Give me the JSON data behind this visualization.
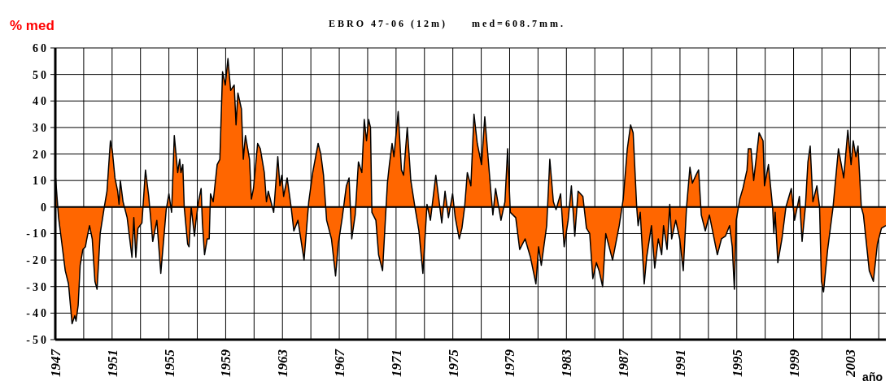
{
  "chart_data": {
    "type": "area",
    "title": "EBRO 47-06 (12m)     med=608.7mm.",
    "ylabel": "% med",
    "xlabel": "año",
    "x": [
      1947.02,
      1947.23,
      1947.42,
      1947.7,
      1947.93,
      1948.18,
      1948.37,
      1948.46,
      1948.61,
      1948.75,
      1948.94,
      1949.12,
      1949.22,
      1949.41,
      1949.6,
      1949.79,
      1949.94,
      1950.16,
      1950.45,
      1950.64,
      1950.88,
      1951.02,
      1951.2,
      1951.39,
      1951.49,
      1951.58,
      1951.77,
      1952.06,
      1952.4,
      1952.53,
      1952.67,
      1952.82,
      1953.1,
      1953.35,
      1953.58,
      1953.86,
      1954.15,
      1954.43,
      1954.81,
      1955.0,
      1955.19,
      1955.38,
      1955.62,
      1955.76,
      1955.85,
      1955.98,
      1956.08,
      1956.32,
      1956.42,
      1956.57,
      1956.8,
      1956.89,
      1957.08,
      1957.27,
      1957.36,
      1957.51,
      1957.7,
      1957.84,
      1957.93,
      1958.12,
      1958.4,
      1958.59,
      1958.78,
      1958.97,
      1959.16,
      1959.35,
      1959.6,
      1959.73,
      1959.86,
      1960.11,
      1960.24,
      1960.39,
      1960.68,
      1960.81,
      1960.96,
      1961.25,
      1961.44,
      1961.72,
      1961.87,
      1962.0,
      1962.38,
      1962.67,
      1962.82,
      1962.95,
      1963.08,
      1963.33,
      1963.61,
      1963.8,
      1964.09,
      1964.52,
      1964.85,
      1965.13,
      1965.51,
      1965.7,
      1965.89,
      1966.11,
      1966.45,
      1966.74,
      1966.93,
      1967.21,
      1967.5,
      1967.69,
      1967.88,
      1968.12,
      1968.35,
      1968.59,
      1968.76,
      1968.92,
      1969.07,
      1969.2,
      1969.3,
      1969.58,
      1969.77,
      1970.05,
      1970.39,
      1970.53,
      1970.72,
      1970.85,
      1971.15,
      1971.38,
      1971.53,
      1971.79,
      1972.04,
      1972.33,
      1972.61,
      1972.89,
      1973.18,
      1973.42,
      1973.8,
      1973.99,
      1974.22,
      1974.45,
      1974.69,
      1974.98,
      1975.17,
      1975.45,
      1975.64,
      1975.83,
      1976.02,
      1976.27,
      1976.49,
      1976.72,
      1977.02,
      1977.25,
      1977.63,
      1977.82,
      1978.01,
      1978.39,
      1978.67,
      1978.86,
      1979.05,
      1979.43,
      1979.71,
      1980.09,
      1980.47,
      1980.85,
      1981.04,
      1981.23,
      1981.61,
      1981.83,
      1982.08,
      1982.27,
      1982.59,
      1982.84,
      1983.12,
      1983.35,
      1983.59,
      1983.82,
      1984.16,
      1984.41,
      1984.64,
      1984.86,
      1985.11,
      1985.3,
      1985.55,
      1985.77,
      1986.25,
      1986.72,
      1987.0,
      1987.29,
      1987.52,
      1987.7,
      1987.95,
      1988.05,
      1988.2,
      1988.48,
      1988.65,
      1988.99,
      1989.22,
      1989.47,
      1989.71,
      1989.84,
      1990.09,
      1990.28,
      1990.41,
      1990.7,
      1990.98,
      1991.23,
      1991.46,
      1991.7,
      1991.87,
      1992.12,
      1992.31,
      1992.5,
      1992.78,
      1993.07,
      1993.63,
      1993.92,
      1994.2,
      1994.49,
      1994.68,
      1994.83,
      1994.96,
      1995.21,
      1995.43,
      1995.72,
      1995.81,
      1996.0,
      1996.19,
      1996.57,
      1996.85,
      1996.95,
      1997.23,
      1997.52,
      1997.61,
      1997.7,
      1997.89,
      1998.18,
      1998.46,
      1998.84,
      1999.07,
      1999.41,
      1999.6,
      1999.83,
      2000.01,
      2000.17,
      2000.36,
      2000.64,
      2000.83,
      2000.96,
      2001.11,
      2001.4,
      2001.78,
      2002.16,
      2002.53,
      2002.82,
      2003.05,
      2003.2,
      2003.39,
      2003.54,
      2003.77,
      2003.92,
      2004.33,
      2004.62,
      2004.9,
      2005.19,
      2005.5
    ],
    "series": [
      {
        "color": "#ff6600",
        "values": [
          11,
          -4,
          -12,
          -24,
          -29,
          -44,
          -41,
          -43,
          -37,
          -22,
          -16,
          -15,
          -12,
          -7,
          -12,
          -28,
          -31,
          -10,
          0,
          6,
          25,
          21,
          11,
          6,
          1,
          10,
          2,
          -4,
          -19,
          -4,
          -19,
          -8,
          -6,
          14,
          4,
          -13,
          -5,
          -25,
          -1,
          5,
          -2,
          27,
          13,
          18,
          13,
          16,
          0,
          -14,
          -15,
          0,
          -11,
          -6,
          2,
          7,
          -6,
          -18,
          -12,
          -12,
          5,
          2,
          16,
          18,
          51,
          46,
          56,
          44,
          46,
          31,
          43,
          37,
          18,
          27,
          18,
          3,
          7,
          24,
          22,
          13,
          2,
          6,
          -2,
          19,
          8,
          12,
          4,
          11,
          0,
          -9,
          -5,
          -20,
          2,
          13,
          24,
          20,
          12,
          -5,
          -12,
          -26,
          -14,
          -4,
          8,
          11,
          -12,
          -3,
          17,
          13,
          33,
          25,
          33,
          30,
          -2,
          -5,
          -18,
          -24,
          9,
          16,
          24,
          19,
          36,
          14,
          12,
          30,
          10,
          0,
          -9,
          -25,
          1,
          -5,
          12,
          4,
          -6,
          6,
          -4,
          5,
          -4,
          -12,
          -8,
          0,
          13,
          8,
          35,
          24,
          16,
          34,
          9,
          -3,
          7,
          -5,
          2,
          22,
          -2,
          -4,
          -16,
          -12,
          -19,
          -29,
          -15,
          -22,
          -7,
          18,
          2,
          -1,
          5,
          -15,
          -5,
          8,
          -11,
          6,
          4,
          -8,
          -10,
          -27,
          -21,
          -24,
          -30,
          -10,
          -20,
          -7,
          3,
          22,
          31,
          28,
          0,
          -7,
          -2,
          -29,
          -19,
          -7,
          -23,
          -12,
          -18,
          -7,
          -16,
          1,
          -12,
          -5,
          -12,
          -24,
          0,
          15,
          9,
          12,
          14,
          -3,
          -9,
          -3,
          -18,
          -12,
          -11,
          -7,
          -15,
          -31,
          -5,
          3,
          7,
          14,
          22,
          22,
          10,
          28,
          25,
          8,
          16,
          0,
          -10,
          -2,
          -21,
          -12,
          0,
          7,
          -5,
          4,
          -13,
          0,
          17,
          23,
          2,
          8,
          0,
          -28,
          -32,
          -16,
          0,
          22,
          11,
          29,
          16,
          25,
          19,
          23,
          0,
          -3,
          -24,
          -28,
          -14,
          -8,
          -7
        ]
      }
    ],
    "xlim": [
      1947,
      2005.5
    ],
    "xticks": [
      {
        "value": 1947,
        "label": "1947"
      },
      {
        "value": 1949,
        "label": null
      },
      {
        "value": 1951,
        "label": "1951"
      },
      {
        "value": 1953,
        "label": null
      },
      {
        "value": 1955,
        "label": "1955"
      },
      {
        "value": 1957,
        "label": null
      },
      {
        "value": 1959,
        "label": "1959"
      },
      {
        "value": 1961,
        "label": null
      },
      {
        "value": 1963,
        "label": "1963"
      },
      {
        "value": 1965,
        "label": null
      },
      {
        "value": 1967,
        "label": "1967"
      },
      {
        "value": 1969,
        "label": null
      },
      {
        "value": 1971,
        "label": "1971"
      },
      {
        "value": 1973,
        "label": null
      },
      {
        "value": 1975,
        "label": "1975"
      },
      {
        "value": 1977,
        "label": null
      },
      {
        "value": 1979,
        "label": "1979"
      },
      {
        "value": 1981,
        "label": null
      },
      {
        "value": 1983,
        "label": "1983"
      },
      {
        "value": 1985,
        "label": null
      },
      {
        "value": 1987,
        "label": "1987"
      },
      {
        "value": 1989,
        "label": null
      },
      {
        "value": 1991,
        "label": "1991"
      },
      {
        "value": 1993,
        "label": null
      },
      {
        "value": 1995,
        "label": "1995"
      },
      {
        "value": 1997,
        "label": null
      },
      {
        "value": 1999,
        "label": "1999"
      },
      {
        "value": 2001,
        "label": null
      },
      {
        "value": 2003,
        "label": "2003"
      },
      {
        "value": 2005,
        "label": null
      }
    ],
    "ylim": [
      -50,
      60
    ],
    "yticks": [
      -50,
      -40,
      -30,
      -20,
      -10,
      0,
      10,
      20,
      30,
      40,
      50,
      60
    ],
    "grid": true
  }
}
